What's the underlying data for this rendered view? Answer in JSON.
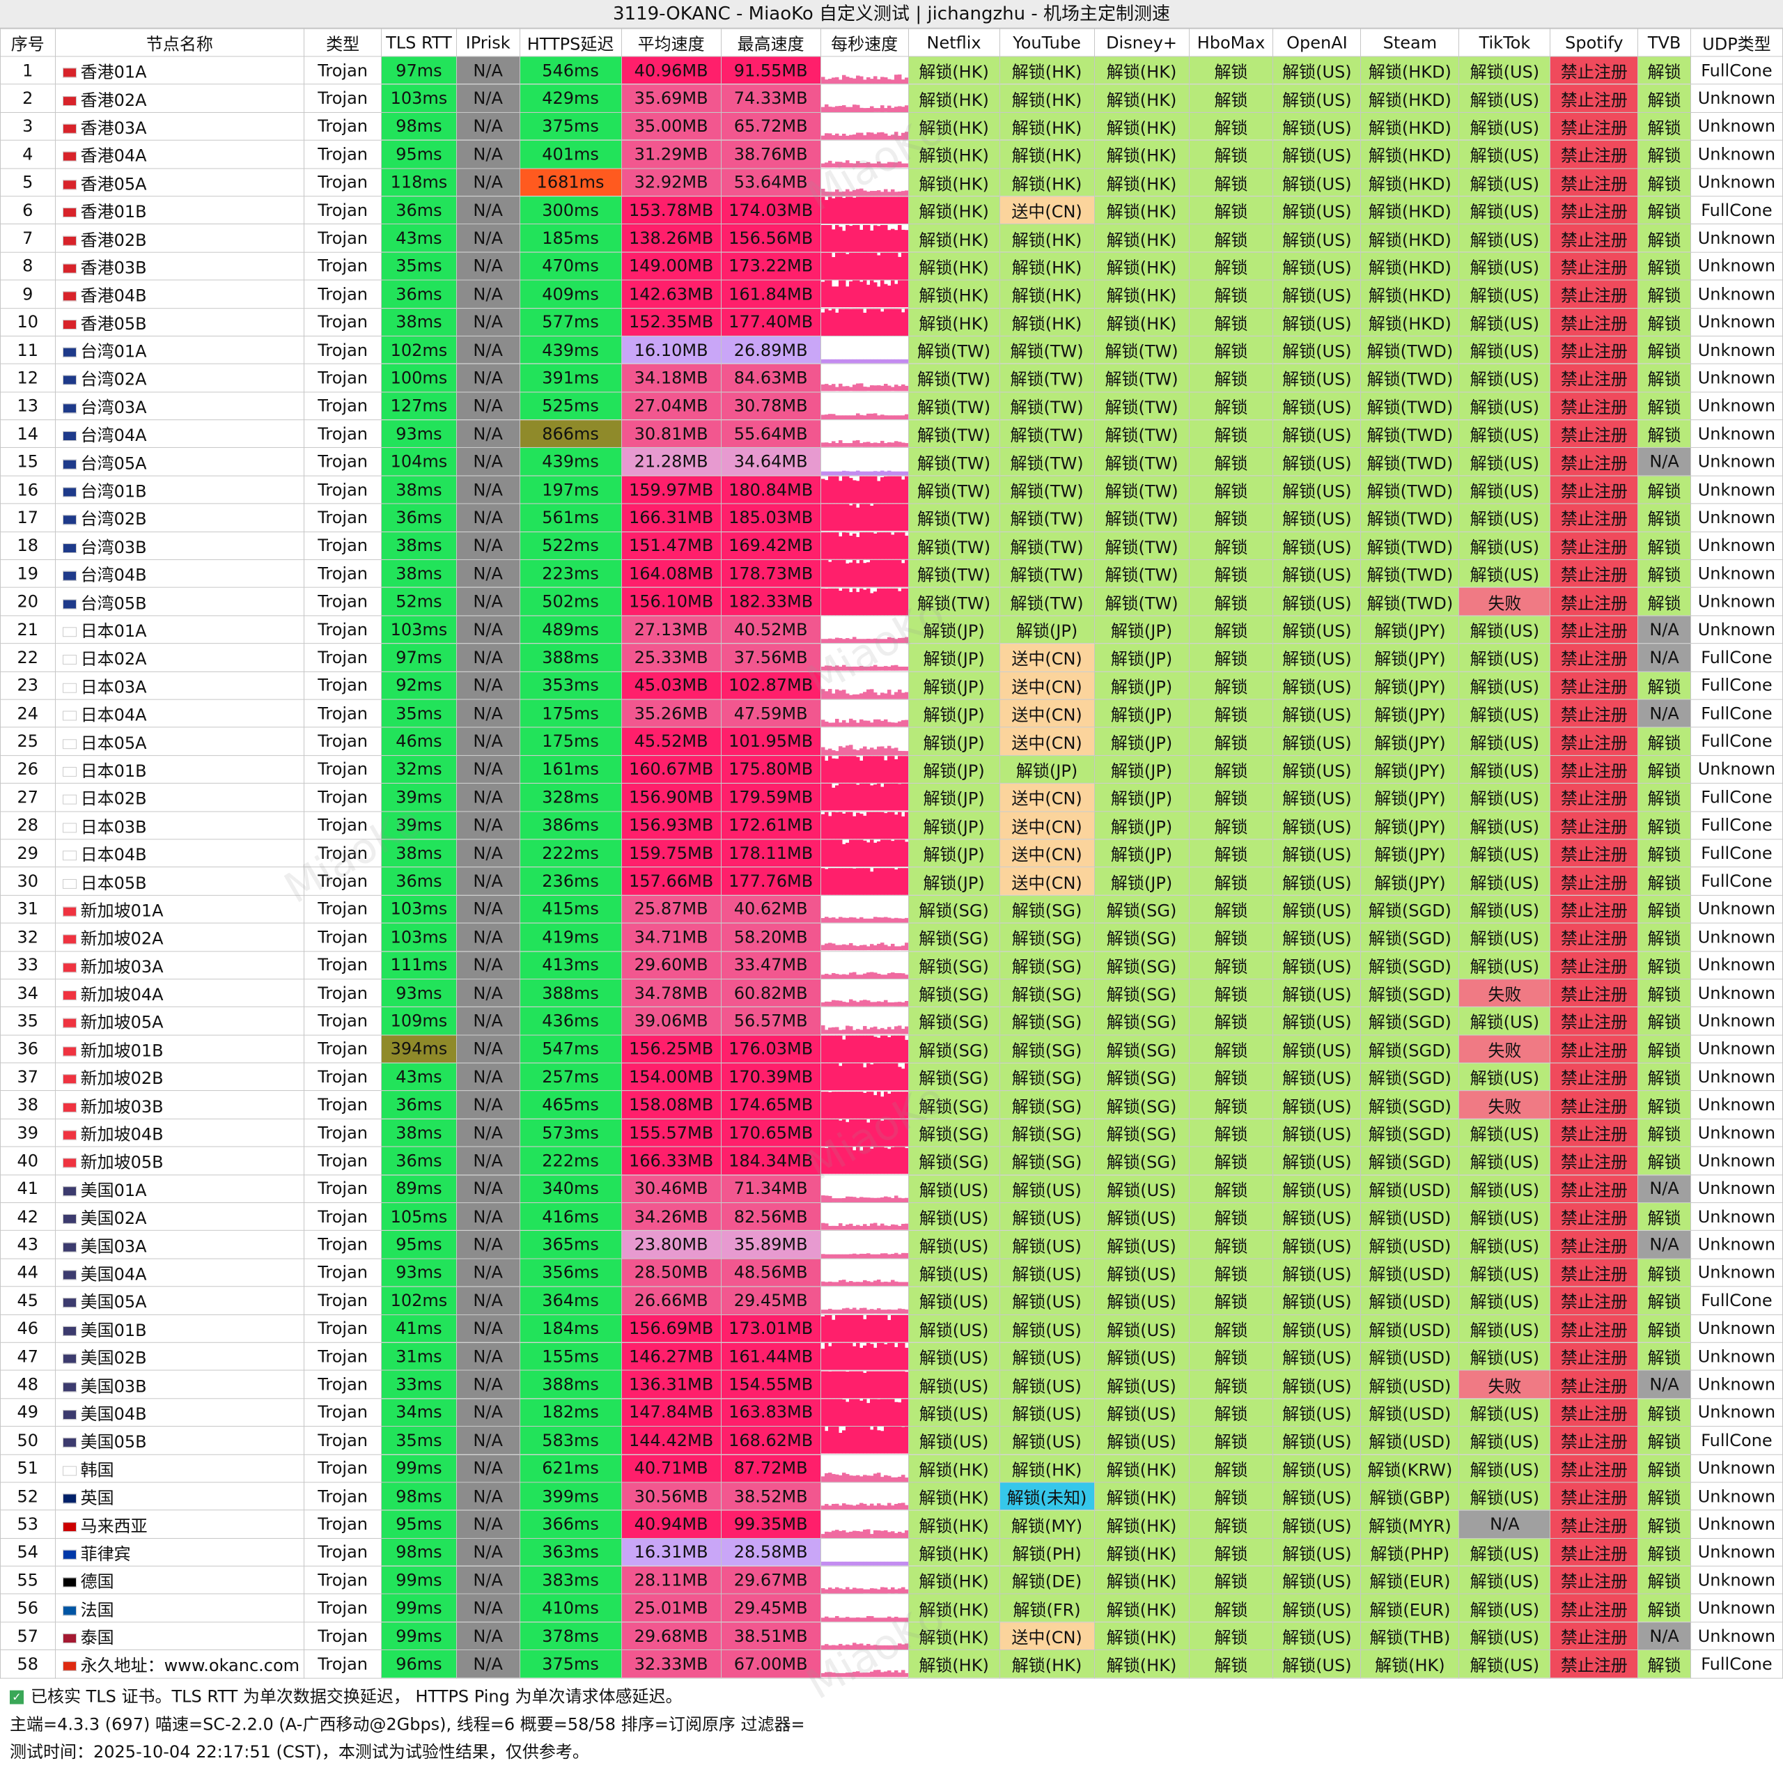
{
  "title": "3119-OKANC - MiaoKo 自定义测试 | jichangzhu - 机场主定制测速",
  "columns": [
    "序号",
    "节点名称",
    "类型",
    "TLS RTT",
    "IPrisk",
    "HTTPS延迟",
    "平均速度",
    "最高速度",
    "每秒速度",
    "Netflix",
    "YouTube",
    "Disney+",
    "HboMax",
    "OpenAI",
    "Steam",
    "TikTok",
    "Spotify",
    "TVB",
    "UDP类型"
  ],
  "rows": [
    [
      "1",
      "香港01A",
      "Trojan",
      "97ms",
      "N/A",
      "546ms",
      "40.96MB",
      "91.55MB",
      "",
      "解锁(HK)",
      "解锁(HK)",
      "解锁(HK)",
      "解锁",
      "解锁(US)",
      "解锁(HKD)",
      "解锁(US)",
      "禁止注册",
      "解锁",
      "FullCone"
    ],
    [
      "2",
      "香港02A",
      "Trojan",
      "103ms",
      "N/A",
      "429ms",
      "35.69MB",
      "74.33MB",
      "",
      "解锁(HK)",
      "解锁(HK)",
      "解锁(HK)",
      "解锁",
      "解锁(US)",
      "解锁(HKD)",
      "解锁(US)",
      "禁止注册",
      "解锁",
      "Unknown"
    ],
    [
      "3",
      "香港03A",
      "Trojan",
      "98ms",
      "N/A",
      "375ms",
      "35.00MB",
      "65.72MB",
      "",
      "解锁(HK)",
      "解锁(HK)",
      "解锁(HK)",
      "解锁",
      "解锁(US)",
      "解锁(HKD)",
      "解锁(US)",
      "禁止注册",
      "解锁",
      "Unknown"
    ],
    [
      "4",
      "香港04A",
      "Trojan",
      "95ms",
      "N/A",
      "401ms",
      "31.29MB",
      "38.76MB",
      "",
      "解锁(HK)",
      "解锁(HK)",
      "解锁(HK)",
      "解锁",
      "解锁(US)",
      "解锁(HKD)",
      "解锁(US)",
      "禁止注册",
      "解锁",
      "Unknown"
    ],
    [
      "5",
      "香港05A",
      "Trojan",
      "118ms",
      "N/A",
      "1681ms",
      "32.92MB",
      "53.64MB",
      "",
      "解锁(HK)",
      "解锁(HK)",
      "解锁(HK)",
      "解锁",
      "解锁(US)",
      "解锁(HKD)",
      "解锁(US)",
      "禁止注册",
      "解锁",
      "Unknown"
    ],
    [
      "6",
      "香港01B",
      "Trojan",
      "36ms",
      "N/A",
      "300ms",
      "153.78MB",
      "174.03MB",
      "",
      "解锁(HK)",
      "送中(CN)",
      "解锁(HK)",
      "解锁",
      "解锁(US)",
      "解锁(HKD)",
      "解锁(US)",
      "禁止注册",
      "解锁",
      "FullCone"
    ],
    [
      "7",
      "香港02B",
      "Trojan",
      "43ms",
      "N/A",
      "185ms",
      "138.26MB",
      "156.56MB",
      "",
      "解锁(HK)",
      "解锁(HK)",
      "解锁(HK)",
      "解锁",
      "解锁(US)",
      "解锁(HKD)",
      "解锁(US)",
      "禁止注册",
      "解锁",
      "Unknown"
    ],
    [
      "8",
      "香港03B",
      "Trojan",
      "35ms",
      "N/A",
      "470ms",
      "149.00MB",
      "173.22MB",
      "",
      "解锁(HK)",
      "解锁(HK)",
      "解锁(HK)",
      "解锁",
      "解锁(US)",
      "解锁(HKD)",
      "解锁(US)",
      "禁止注册",
      "解锁",
      "Unknown"
    ],
    [
      "9",
      "香港04B",
      "Trojan",
      "36ms",
      "N/A",
      "409ms",
      "142.63MB",
      "161.84MB",
      "",
      "解锁(HK)",
      "解锁(HK)",
      "解锁(HK)",
      "解锁",
      "解锁(US)",
      "解锁(HKD)",
      "解锁(US)",
      "禁止注册",
      "解锁",
      "Unknown"
    ],
    [
      "10",
      "香港05B",
      "Trojan",
      "38ms",
      "N/A",
      "577ms",
      "152.35MB",
      "177.40MB",
      "",
      "解锁(HK)",
      "解锁(HK)",
      "解锁(HK)",
      "解锁",
      "解锁(US)",
      "解锁(HKD)",
      "解锁(US)",
      "禁止注册",
      "解锁",
      "Unknown"
    ],
    [
      "11",
      "台湾01A",
      "Trojan",
      "102ms",
      "N/A",
      "439ms",
      "16.10MB",
      "26.89MB",
      "",
      "解锁(TW)",
      "解锁(TW)",
      "解锁(TW)",
      "解锁",
      "解锁(US)",
      "解锁(TWD)",
      "解锁(US)",
      "禁止注册",
      "解锁",
      "Unknown"
    ],
    [
      "12",
      "台湾02A",
      "Trojan",
      "100ms",
      "N/A",
      "391ms",
      "34.18MB",
      "84.63MB",
      "",
      "解锁(TW)",
      "解锁(TW)",
      "解锁(TW)",
      "解锁",
      "解锁(US)",
      "解锁(TWD)",
      "解锁(US)",
      "禁止注册",
      "解锁",
      "Unknown"
    ],
    [
      "13",
      "台湾03A",
      "Trojan",
      "127ms",
      "N/A",
      "525ms",
      "27.04MB",
      "30.78MB",
      "",
      "解锁(TW)",
      "解锁(TW)",
      "解锁(TW)",
      "解锁",
      "解锁(US)",
      "解锁(TWD)",
      "解锁(US)",
      "禁止注册",
      "解锁",
      "Unknown"
    ],
    [
      "14",
      "台湾04A",
      "Trojan",
      "93ms",
      "N/A",
      "866ms",
      "30.81MB",
      "55.64MB",
      "",
      "解锁(TW)",
      "解锁(TW)",
      "解锁(TW)",
      "解锁",
      "解锁(US)",
      "解锁(TWD)",
      "解锁(US)",
      "禁止注册",
      "解锁",
      "Unknown"
    ],
    [
      "15",
      "台湾05A",
      "Trojan",
      "104ms",
      "N/A",
      "439ms",
      "21.28MB",
      "34.64MB",
      "",
      "解锁(TW)",
      "解锁(TW)",
      "解锁(TW)",
      "解锁",
      "解锁(US)",
      "解锁(TWD)",
      "解锁(US)",
      "禁止注册",
      "N/A",
      "Unknown"
    ],
    [
      "16",
      "台湾01B",
      "Trojan",
      "38ms",
      "N/A",
      "197ms",
      "159.97MB",
      "180.84MB",
      "",
      "解锁(TW)",
      "解锁(TW)",
      "解锁(TW)",
      "解锁",
      "解锁(US)",
      "解锁(TWD)",
      "解锁(US)",
      "禁止注册",
      "解锁",
      "Unknown"
    ],
    [
      "17",
      "台湾02B",
      "Trojan",
      "36ms",
      "N/A",
      "561ms",
      "166.31MB",
      "185.03MB",
      "",
      "解锁(TW)",
      "解锁(TW)",
      "解锁(TW)",
      "解锁",
      "解锁(US)",
      "解锁(TWD)",
      "解锁(US)",
      "禁止注册",
      "解锁",
      "Unknown"
    ],
    [
      "18",
      "台湾03B",
      "Trojan",
      "38ms",
      "N/A",
      "522ms",
      "151.47MB",
      "169.42MB",
      "",
      "解锁(TW)",
      "解锁(TW)",
      "解锁(TW)",
      "解锁",
      "解锁(US)",
      "解锁(TWD)",
      "解锁(US)",
      "禁止注册",
      "解锁",
      "Unknown"
    ],
    [
      "19",
      "台湾04B",
      "Trojan",
      "38ms",
      "N/A",
      "223ms",
      "164.08MB",
      "178.73MB",
      "",
      "解锁(TW)",
      "解锁(TW)",
      "解锁(TW)",
      "解锁",
      "解锁(US)",
      "解锁(TWD)",
      "解锁(US)",
      "禁止注册",
      "解锁",
      "Unknown"
    ],
    [
      "20",
      "台湾05B",
      "Trojan",
      "52ms",
      "N/A",
      "502ms",
      "156.10MB",
      "182.33MB",
      "",
      "解锁(TW)",
      "解锁(TW)",
      "解锁(TW)",
      "解锁",
      "解锁(US)",
      "解锁(TWD)",
      "失败",
      "禁止注册",
      "解锁",
      "Unknown"
    ],
    [
      "21",
      "日本01A",
      "Trojan",
      "103ms",
      "N/A",
      "489ms",
      "27.13MB",
      "40.52MB",
      "",
      "解锁(JP)",
      "解锁(JP)",
      "解锁(JP)",
      "解锁",
      "解锁(US)",
      "解锁(JPY)",
      "解锁(US)",
      "禁止注册",
      "N/A",
      "Unknown"
    ],
    [
      "22",
      "日本02A",
      "Trojan",
      "97ms",
      "N/A",
      "388ms",
      "25.33MB",
      "37.56MB",
      "",
      "解锁(JP)",
      "送中(CN)",
      "解锁(JP)",
      "解锁",
      "解锁(US)",
      "解锁(JPY)",
      "解锁(US)",
      "禁止注册",
      "N/A",
      "FullCone"
    ],
    [
      "23",
      "日本03A",
      "Trojan",
      "92ms",
      "N/A",
      "353ms",
      "45.03MB",
      "102.87MB",
      "",
      "解锁(JP)",
      "送中(CN)",
      "解锁(JP)",
      "解锁",
      "解锁(US)",
      "解锁(JPY)",
      "解锁(US)",
      "禁止注册",
      "解锁",
      "FullCone"
    ],
    [
      "24",
      "日本04A",
      "Trojan",
      "35ms",
      "N/A",
      "175ms",
      "35.26MB",
      "47.59MB",
      "",
      "解锁(JP)",
      "送中(CN)",
      "解锁(JP)",
      "解锁",
      "解锁(US)",
      "解锁(JPY)",
      "解锁(US)",
      "禁止注册",
      "N/A",
      "FullCone"
    ],
    [
      "25",
      "日本05A",
      "Trojan",
      "46ms",
      "N/A",
      "175ms",
      "45.52MB",
      "101.95MB",
      "",
      "解锁(JP)",
      "送中(CN)",
      "解锁(JP)",
      "解锁",
      "解锁(US)",
      "解锁(JPY)",
      "解锁(US)",
      "禁止注册",
      "解锁",
      "FullCone"
    ],
    [
      "26",
      "日本01B",
      "Trojan",
      "32ms",
      "N/A",
      "161ms",
      "160.67MB",
      "175.80MB",
      "",
      "解锁(JP)",
      "解锁(JP)",
      "解锁(JP)",
      "解锁",
      "解锁(US)",
      "解锁(JPY)",
      "解锁(US)",
      "禁止注册",
      "解锁",
      "Unknown"
    ],
    [
      "27",
      "日本02B",
      "Trojan",
      "39ms",
      "N/A",
      "328ms",
      "156.90MB",
      "179.59MB",
      "",
      "解锁(JP)",
      "送中(CN)",
      "解锁(JP)",
      "解锁",
      "解锁(US)",
      "解锁(JPY)",
      "解锁(US)",
      "禁止注册",
      "解锁",
      "FullCone"
    ],
    [
      "28",
      "日本03B",
      "Trojan",
      "39ms",
      "N/A",
      "386ms",
      "156.93MB",
      "172.61MB",
      "",
      "解锁(JP)",
      "送中(CN)",
      "解锁(JP)",
      "解锁",
      "解锁(US)",
      "解锁(JPY)",
      "解锁(US)",
      "禁止注册",
      "解锁",
      "FullCone"
    ],
    [
      "29",
      "日本04B",
      "Trojan",
      "38ms",
      "N/A",
      "222ms",
      "159.75MB",
      "178.11MB",
      "",
      "解锁(JP)",
      "送中(CN)",
      "解锁(JP)",
      "解锁",
      "解锁(US)",
      "解锁(JPY)",
      "解锁(US)",
      "禁止注册",
      "解锁",
      "FullCone"
    ],
    [
      "30",
      "日本05B",
      "Trojan",
      "36ms",
      "N/A",
      "236ms",
      "157.66MB",
      "177.76MB",
      "",
      "解锁(JP)",
      "送中(CN)",
      "解锁(JP)",
      "解锁",
      "解锁(US)",
      "解锁(JPY)",
      "解锁(US)",
      "禁止注册",
      "解锁",
      "FullCone"
    ],
    [
      "31",
      "新加坡01A",
      "Trojan",
      "103ms",
      "N/A",
      "415ms",
      "25.87MB",
      "40.62MB",
      "",
      "解锁(SG)",
      "解锁(SG)",
      "解锁(SG)",
      "解锁",
      "解锁(US)",
      "解锁(SGD)",
      "解锁(US)",
      "禁止注册",
      "解锁",
      "Unknown"
    ],
    [
      "32",
      "新加坡02A",
      "Trojan",
      "103ms",
      "N/A",
      "419ms",
      "34.71MB",
      "58.20MB",
      "",
      "解锁(SG)",
      "解锁(SG)",
      "解锁(SG)",
      "解锁",
      "解锁(US)",
      "解锁(SGD)",
      "解锁(US)",
      "禁止注册",
      "解锁",
      "Unknown"
    ],
    [
      "33",
      "新加坡03A",
      "Trojan",
      "111ms",
      "N/A",
      "413ms",
      "29.60MB",
      "33.47MB",
      "",
      "解锁(SG)",
      "解锁(SG)",
      "解锁(SG)",
      "解锁",
      "解锁(US)",
      "解锁(SGD)",
      "解锁(US)",
      "禁止注册",
      "解锁",
      "Unknown"
    ],
    [
      "34",
      "新加坡04A",
      "Trojan",
      "93ms",
      "N/A",
      "388ms",
      "34.78MB",
      "60.82MB",
      "",
      "解锁(SG)",
      "解锁(SG)",
      "解锁(SG)",
      "解锁",
      "解锁(US)",
      "解锁(SGD)",
      "失败",
      "禁止注册",
      "解锁",
      "Unknown"
    ],
    [
      "35",
      "新加坡05A",
      "Trojan",
      "109ms",
      "N/A",
      "436ms",
      "39.06MB",
      "56.57MB",
      "",
      "解锁(SG)",
      "解锁(SG)",
      "解锁(SG)",
      "解锁",
      "解锁(US)",
      "解锁(SGD)",
      "解锁(US)",
      "禁止注册",
      "解锁",
      "Unknown"
    ],
    [
      "36",
      "新加坡01B",
      "Trojan",
      "394ms",
      "N/A",
      "547ms",
      "156.25MB",
      "176.03MB",
      "",
      "解锁(SG)",
      "解锁(SG)",
      "解锁(SG)",
      "解锁",
      "解锁(US)",
      "解锁(SGD)",
      "失败",
      "禁止注册",
      "解锁",
      "Unknown"
    ],
    [
      "37",
      "新加坡02B",
      "Trojan",
      "43ms",
      "N/A",
      "257ms",
      "154.00MB",
      "170.39MB",
      "",
      "解锁(SG)",
      "解锁(SG)",
      "解锁(SG)",
      "解锁",
      "解锁(US)",
      "解锁(SGD)",
      "解锁(US)",
      "禁止注册",
      "解锁",
      "Unknown"
    ],
    [
      "38",
      "新加坡03B",
      "Trojan",
      "36ms",
      "N/A",
      "465ms",
      "158.08MB",
      "174.65MB",
      "",
      "解锁(SG)",
      "解锁(SG)",
      "解锁(SG)",
      "解锁",
      "解锁(US)",
      "解锁(SGD)",
      "失败",
      "禁止注册",
      "解锁",
      "Unknown"
    ],
    [
      "39",
      "新加坡04B",
      "Trojan",
      "38ms",
      "N/A",
      "573ms",
      "155.57MB",
      "170.65MB",
      "",
      "解锁(SG)",
      "解锁(SG)",
      "解锁(SG)",
      "解锁",
      "解锁(US)",
      "解锁(SGD)",
      "解锁(US)",
      "禁止注册",
      "解锁",
      "Unknown"
    ],
    [
      "40",
      "新加坡05B",
      "Trojan",
      "36ms",
      "N/A",
      "222ms",
      "166.33MB",
      "184.34MB",
      "",
      "解锁(SG)",
      "解锁(SG)",
      "解锁(SG)",
      "解锁",
      "解锁(US)",
      "解锁(SGD)",
      "解锁(US)",
      "禁止注册",
      "解锁",
      "Unknown"
    ],
    [
      "41",
      "美国01A",
      "Trojan",
      "89ms",
      "N/A",
      "340ms",
      "30.46MB",
      "71.34MB",
      "",
      "解锁(US)",
      "解锁(US)",
      "解锁(US)",
      "解锁",
      "解锁(US)",
      "解锁(USD)",
      "解锁(US)",
      "禁止注册",
      "N/A",
      "Unknown"
    ],
    [
      "42",
      "美国02A",
      "Trojan",
      "105ms",
      "N/A",
      "416ms",
      "34.26MB",
      "82.56MB",
      "",
      "解锁(US)",
      "解锁(US)",
      "解锁(US)",
      "解锁",
      "解锁(US)",
      "解锁(USD)",
      "解锁(US)",
      "禁止注册",
      "解锁",
      "Unknown"
    ],
    [
      "43",
      "美国03A",
      "Trojan",
      "95ms",
      "N/A",
      "365ms",
      "23.80MB",
      "35.89MB",
      "",
      "解锁(US)",
      "解锁(US)",
      "解锁(US)",
      "解锁",
      "解锁(US)",
      "解锁(USD)",
      "解锁(US)",
      "禁止注册",
      "N/A",
      "Unknown"
    ],
    [
      "44",
      "美国04A",
      "Trojan",
      "93ms",
      "N/A",
      "356ms",
      "28.50MB",
      "48.56MB",
      "",
      "解锁(US)",
      "解锁(US)",
      "解锁(US)",
      "解锁",
      "解锁(US)",
      "解锁(USD)",
      "解锁(US)",
      "禁止注册",
      "解锁",
      "Unknown"
    ],
    [
      "45",
      "美国05A",
      "Trojan",
      "102ms",
      "N/A",
      "364ms",
      "26.66MB",
      "29.45MB",
      "",
      "解锁(US)",
      "解锁(US)",
      "解锁(US)",
      "解锁",
      "解锁(US)",
      "解锁(USD)",
      "解锁(US)",
      "禁止注册",
      "解锁",
      "FullCone"
    ],
    [
      "46",
      "美国01B",
      "Trojan",
      "41ms",
      "N/A",
      "184ms",
      "156.69MB",
      "173.01MB",
      "",
      "解锁(US)",
      "解锁(US)",
      "解锁(US)",
      "解锁",
      "解锁(US)",
      "解锁(USD)",
      "解锁(US)",
      "禁止注册",
      "解锁",
      "Unknown"
    ],
    [
      "47",
      "美国02B",
      "Trojan",
      "31ms",
      "N/A",
      "155ms",
      "146.27MB",
      "161.44MB",
      "",
      "解锁(US)",
      "解锁(US)",
      "解锁(US)",
      "解锁",
      "解锁(US)",
      "解锁(USD)",
      "解锁(US)",
      "禁止注册",
      "解锁",
      "Unknown"
    ],
    [
      "48",
      "美国03B",
      "Trojan",
      "33ms",
      "N/A",
      "388ms",
      "136.31MB",
      "154.55MB",
      "",
      "解锁(US)",
      "解锁(US)",
      "解锁(US)",
      "解锁",
      "解锁(US)",
      "解锁(USD)",
      "失败",
      "禁止注册",
      "N/A",
      "Unknown"
    ],
    [
      "49",
      "美国04B",
      "Trojan",
      "34ms",
      "N/A",
      "182ms",
      "147.84MB",
      "163.83MB",
      "",
      "解锁(US)",
      "解锁(US)",
      "解锁(US)",
      "解锁",
      "解锁(US)",
      "解锁(USD)",
      "解锁(US)",
      "禁止注册",
      "解锁",
      "Unknown"
    ],
    [
      "50",
      "美国05B",
      "Trojan",
      "35ms",
      "N/A",
      "583ms",
      "144.42MB",
      "168.62MB",
      "",
      "解锁(US)",
      "解锁(US)",
      "解锁(US)",
      "解锁",
      "解锁(US)",
      "解锁(USD)",
      "解锁(US)",
      "禁止注册",
      "解锁",
      "FullCone"
    ],
    [
      "51",
      "韩国",
      "Trojan",
      "99ms",
      "N/A",
      "621ms",
      "40.71MB",
      "87.72MB",
      "",
      "解锁(HK)",
      "解锁(HK)",
      "解锁(HK)",
      "解锁",
      "解锁(US)",
      "解锁(KRW)",
      "解锁(US)",
      "禁止注册",
      "解锁",
      "Unknown"
    ],
    [
      "52",
      "英国",
      "Trojan",
      "98ms",
      "N/A",
      "399ms",
      "30.56MB",
      "38.52MB",
      "",
      "解锁(HK)",
      "解锁(未知)",
      "解锁(HK)",
      "解锁",
      "解锁(US)",
      "解锁(GBP)",
      "解锁(US)",
      "禁止注册",
      "解锁",
      "Unknown"
    ],
    [
      "53",
      "马来西亚",
      "Trojan",
      "95ms",
      "N/A",
      "366ms",
      "40.94MB",
      "99.35MB",
      "",
      "解锁(HK)",
      "解锁(MY)",
      "解锁(HK)",
      "解锁",
      "解锁(US)",
      "解锁(MYR)",
      "N/A",
      "禁止注册",
      "解锁",
      "Unknown"
    ],
    [
      "54",
      "菲律宾",
      "Trojan",
      "98ms",
      "N/A",
      "363ms",
      "16.31MB",
      "28.58MB",
      "",
      "解锁(HK)",
      "解锁(PH)",
      "解锁(HK)",
      "解锁",
      "解锁(US)",
      "解锁(PHP)",
      "解锁(US)",
      "禁止注册",
      "解锁",
      "Unknown"
    ],
    [
      "55",
      "德国",
      "Trojan",
      "99ms",
      "N/A",
      "383ms",
      "28.11MB",
      "29.67MB",
      "",
      "解锁(HK)",
      "解锁(DE)",
      "解锁(HK)",
      "解锁",
      "解锁(US)",
      "解锁(EUR)",
      "解锁(US)",
      "禁止注册",
      "解锁",
      "Unknown"
    ],
    [
      "56",
      "法国",
      "Trojan",
      "99ms",
      "N/A",
      "410ms",
      "25.01MB",
      "29.45MB",
      "",
      "解锁(HK)",
      "解锁(FR)",
      "解锁(HK)",
      "解锁",
      "解锁(US)",
      "解锁(EUR)",
      "解锁(US)",
      "禁止注册",
      "解锁",
      "Unknown"
    ],
    [
      "57",
      "泰国",
      "Trojan",
      "99ms",
      "N/A",
      "378ms",
      "29.68MB",
      "38.51MB",
      "",
      "解锁(HK)",
      "送中(CN)",
      "解锁(HK)",
      "解锁",
      "解锁(US)",
      "解锁(THB)",
      "解锁(US)",
      "禁止注册",
      "N/A",
      "Unknown"
    ],
    [
      "58",
      "永久地址：www.okanc.com",
      "Trojan",
      "96ms",
      "N/A",
      "375ms",
      "32.33MB",
      "67.00MB",
      "",
      "解锁(HK)",
      "解锁(HK)",
      "解锁(HK)",
      "解锁",
      "解锁(US)",
      "解锁(HK)",
      "解锁(US)",
      "禁止注册",
      "解锁",
      "FullCone"
    ]
  ],
  "footer": {
    "line1": "已核实 TLS 证书。TLS RTT 为单次数据交换延迟， HTTPS Ping 为单次请求体感延迟。",
    "line2": "主端=4.3.3 (697) 喵速=SC-2.2.0 (A-广西移动@2Gbps), 线程=6 概要=58/58 排序=订阅原序 过滤器=",
    "line3": "测试时间：2025-10-04 22:17:51 (CST)，本测试为试验性结果，仅供参考。"
  },
  "watermark": "MiaoKo",
  "colors": {
    "green": "#22e35a",
    "gray": "#8c8c8c",
    "orange": "#ff5a1f",
    "olive": "#8f8a2a",
    "pink": "#ff1f6b",
    "lavender": "#c9a6f7",
    "unlock": "#b7ea7a",
    "ban": "#f04a5c",
    "fail": "#f07a84",
    "cn": "#fbd49c",
    "unknown_region": "#36c7ea",
    "na": "#a0a0a0"
  }
}
